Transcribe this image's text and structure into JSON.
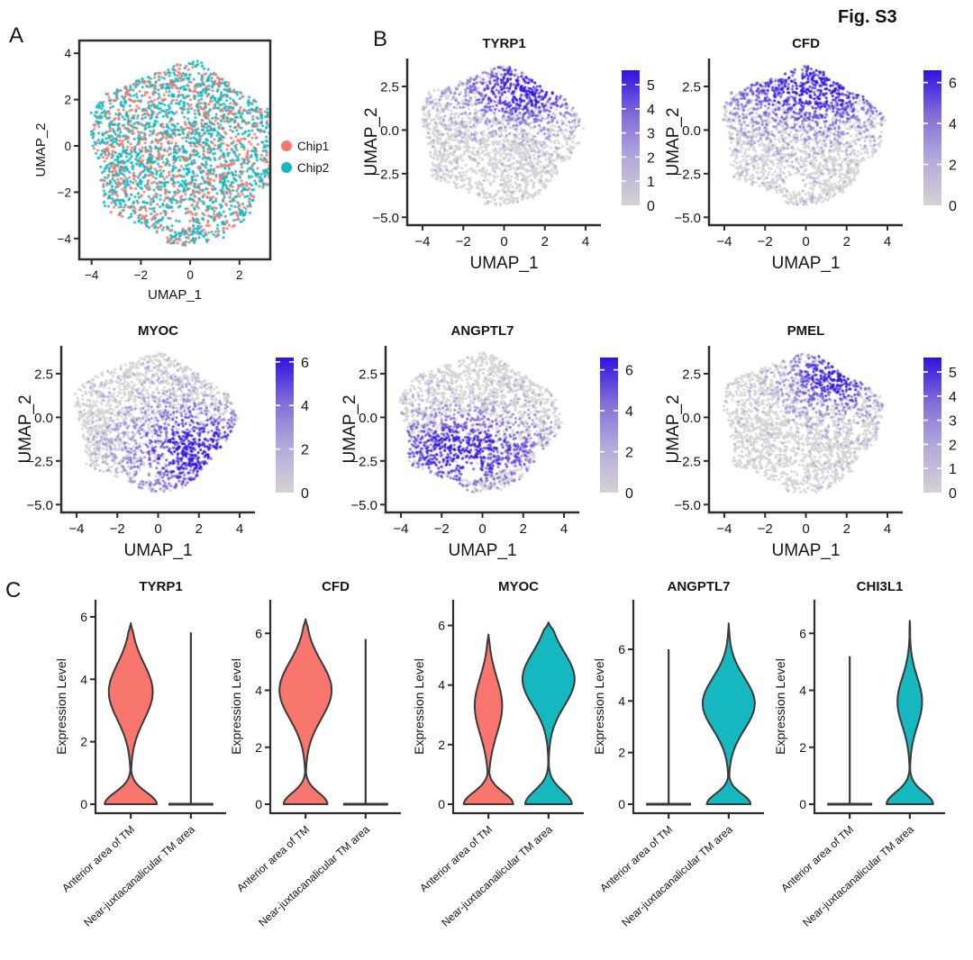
{
  "figure_label": "Fig. S3",
  "panel_labels": {
    "a": "A",
    "b": "B",
    "c": "C"
  },
  "colors": {
    "chip1": "#F8766D",
    "chip2": "#14B8BE",
    "expr_gradient": [
      "#D5D2D2",
      "#B3A8DC",
      "#8671D8",
      "#3012E1"
    ],
    "axis": "#2D2D2D",
    "violin_outline": "#3A3A3A"
  },
  "chart_data": [
    {
      "id": "umap-by-chip",
      "panel": "A",
      "kind": "chip-scatter",
      "type": "scatter",
      "xlabel": "UMAP_1",
      "ylabel": "UMAP_2",
      "xticks": [
        "−4",
        "−2",
        "0",
        "2"
      ],
      "yticks": [
        "4",
        "2",
        "0",
        "−2",
        "−4"
      ],
      "xlim": [
        -4.5,
        3.25
      ],
      "ylim": [
        -4.9,
        4.55
      ],
      "legend": [
        {
          "label": "Chip1",
          "color": "#F8766D"
        },
        {
          "label": "Chip2",
          "color": "#14B8BE"
        }
      ],
      "n_points": 2600,
      "chip1_fraction": 0.38,
      "framed": true,
      "seed": 7
    },
    {
      "id": "feature-TYRP1",
      "panel": "B",
      "kind": "feature-scatter",
      "type": "scatter",
      "title": "TYRP1",
      "xlabel": "UMAP_1",
      "ylabel": "UMAP_2",
      "xticks": [
        "−4",
        "−2",
        "0",
        "2",
        "4"
      ],
      "yticks": [
        "2.5",
        "0.0",
        "−2.5",
        "−5.0"
      ],
      "xlim": [
        -4.75,
        4.75
      ],
      "ylim": [
        -5.45,
        4.1
      ],
      "colorbar_ticks": [
        "5",
        "4",
        "3",
        "2",
        "1",
        "0"
      ],
      "colorbar_max": 5.6,
      "hotspot": {
        "cx": 1.1,
        "cy": 2.4,
        "sx": 2.3,
        "sy": 1.5,
        "density": 0.95,
        "background": 0.1
      },
      "expression_pattern": "high in upper region",
      "n_points": 2100,
      "seed": 11
    },
    {
      "id": "feature-CFD",
      "panel": "B",
      "kind": "feature-scatter",
      "type": "scatter",
      "title": "CFD",
      "xlabel": "UMAP_1",
      "ylabel": "UMAP_2",
      "xticks": [
        "−4",
        "−2",
        "0",
        "2",
        "4"
      ],
      "yticks": [
        "2.5",
        "0.0",
        "−2.5",
        "−5.0"
      ],
      "xlim": [
        -4.75,
        4.75
      ],
      "ylim": [
        -5.45,
        4.1
      ],
      "colorbar_ticks": [
        "6",
        "4",
        "2",
        "0"
      ],
      "colorbar_max": 6.6,
      "hotspot": {
        "cx": 0.4,
        "cy": 2.5,
        "sx": 3.0,
        "sy": 1.8,
        "density": 0.9,
        "background": 0.12
      },
      "expression_pattern": "high across upper half",
      "n_points": 2100,
      "seed": 12
    },
    {
      "id": "feature-MYOC",
      "panel": "B",
      "kind": "feature-scatter",
      "type": "scatter",
      "title": "MYOC",
      "xlabel": "UMAP_1",
      "ylabel": "UMAP_2",
      "xticks": [
        "−4",
        "−2",
        "0",
        "2",
        "4"
      ],
      "yticks": [
        "2.5",
        "0.0",
        "−2.5",
        "−5.0"
      ],
      "xlim": [
        -4.75,
        4.75
      ],
      "ylim": [
        -5.45,
        4.1
      ],
      "colorbar_ticks": [
        "6",
        "4",
        "2",
        "0"
      ],
      "colorbar_max": 6.2,
      "hotspot": {
        "cx": 1.7,
        "cy": -1.9,
        "sx": 2.2,
        "sy": 1.9,
        "density": 0.9,
        "background": 0.12
      },
      "expression_pattern": "high in lower-right region",
      "n_points": 2100,
      "seed": 13
    },
    {
      "id": "feature-ANGPTL7",
      "panel": "B",
      "kind": "feature-scatter",
      "type": "scatter",
      "title": "ANGPTL7",
      "xlabel": "UMAP_1",
      "ylabel": "UMAP_2",
      "xticks": [
        "−4",
        "−2",
        "0",
        "2",
        "4"
      ],
      "yticks": [
        "2.5",
        "0.0",
        "−2.5",
        "−5.0"
      ],
      "xlim": [
        -4.75,
        4.75
      ],
      "ylim": [
        -5.45,
        4.1
      ],
      "colorbar_ticks": [
        "6",
        "4",
        "2",
        "0"
      ],
      "colorbar_max": 6.6,
      "hotspot": {
        "cx": -0.9,
        "cy": -1.9,
        "sx": 2.9,
        "sy": 1.5,
        "density": 0.92,
        "background": 0.07
      },
      "expression_pattern": "high across lower region",
      "n_points": 2100,
      "seed": 14
    },
    {
      "id": "feature-PMEL",
      "panel": "B",
      "kind": "feature-scatter",
      "type": "scatter",
      "title": "PMEL",
      "xlabel": "UMAP_1",
      "ylabel": "UMAP_2",
      "xticks": [
        "−4",
        "−2",
        "0",
        "2",
        "4"
      ],
      "yticks": [
        "2.5",
        "0.0",
        "−2.5",
        "−5.0"
      ],
      "xlim": [
        -4.75,
        4.75
      ],
      "ylim": [
        -5.45,
        4.1
      ],
      "colorbar_ticks": [
        "5",
        "4",
        "3",
        "2",
        "1",
        "0"
      ],
      "colorbar_max": 5.6,
      "hotspot": {
        "cx": 1.6,
        "cy": 2.4,
        "sx": 1.8,
        "sy": 1.5,
        "density": 0.95,
        "background": 0.07
      },
      "expression_pattern": "high in upper-right region",
      "n_points": 2100,
      "seed": 15
    },
    {
      "id": "violin-TYRP1",
      "panel": "C",
      "kind": "violin",
      "type": "area",
      "title": "TYRP1",
      "ylabel": "Expression Level",
      "yticks": [
        "0",
        "2",
        "4",
        "6"
      ],
      "ymax_axis": 6.2,
      "categories": [
        "Anterior area of TM",
        "Near-juxtacanalicular TM area"
      ],
      "series": [
        {
          "category": "Anterior area of TM",
          "color": "#F8766D",
          "style": "violin",
          "max": 5.8,
          "bulge_center": 3.6,
          "bulge_sd": 0.9,
          "bulge_width": 0.8,
          "base_width": 0.95,
          "base_sd": 0.38
        },
        {
          "category": "Near-juxtacanalicular TM area",
          "color": "#14B8BE",
          "style": "line",
          "max": 5.5
        }
      ]
    },
    {
      "id": "violin-CFD",
      "panel": "C",
      "kind": "violin",
      "type": "area",
      "title": "CFD",
      "ylabel": "Expression Level",
      "yticks": [
        "0",
        "2",
        "4",
        "6"
      ],
      "ymax_axis": 6.8,
      "categories": [
        "Anterior area of TM",
        "Near-juxtacanalicular TM area"
      ],
      "series": [
        {
          "category": "Anterior area of TM",
          "color": "#F8766D",
          "style": "violin",
          "max": 6.5,
          "bulge_center": 4.0,
          "bulge_sd": 1.0,
          "bulge_width": 0.95,
          "base_width": 0.8,
          "base_sd": 0.4
        },
        {
          "category": "Near-juxtacanalicular TM area",
          "color": "#14B8BE",
          "style": "line",
          "max": 5.8
        }
      ]
    },
    {
      "id": "violin-MYOC",
      "panel": "C",
      "kind": "violin",
      "type": "area",
      "title": "MYOC",
      "ylabel": "Expression Level",
      "yticks": [
        "0",
        "2",
        "4",
        "6"
      ],
      "ymax_axis": 6.5,
      "categories": [
        "Anterior area of TM",
        "Near-juxtacanalicular TM area"
      ],
      "series": [
        {
          "category": "Anterior area of TM",
          "color": "#F8766D",
          "style": "violin",
          "max": 5.7,
          "bulge_center": 3.3,
          "bulge_sd": 0.95,
          "bulge_width": 0.5,
          "base_width": 0.9,
          "base_sd": 0.4
        },
        {
          "category": "Near-juxtacanalicular TM area",
          "color": "#14B8BE",
          "style": "violin",
          "max": 6.1,
          "bulge_center": 4.2,
          "bulge_sd": 0.9,
          "bulge_width": 0.95,
          "base_width": 0.85,
          "base_sd": 0.45
        }
      ]
    },
    {
      "id": "violin-ANGPTL7",
      "panel": "C",
      "kind": "violin",
      "type": "area",
      "title": "ANGPTL7",
      "ylabel": "Expression Level",
      "yticks": [
        "0",
        "2",
        "4",
        "6"
      ],
      "ymax_axis": 7.5,
      "categories": [
        "Anterior area of TM",
        "Near-juxtacanalicular TM area"
      ],
      "series": [
        {
          "category": "Anterior area of TM",
          "color": "#F8766D",
          "style": "line",
          "max": 6.0
        },
        {
          "category": "Near-juxtacanalicular TM area",
          "color": "#14B8BE",
          "style": "violin",
          "max": 7.0,
          "bulge_center": 3.9,
          "bulge_sd": 1.0,
          "bulge_width": 0.95,
          "base_width": 0.8,
          "base_sd": 0.4
        }
      ]
    },
    {
      "id": "violin-CHI3L1",
      "panel": "C",
      "kind": "violin",
      "type": "area",
      "title": "CHI3L1",
      "ylabel": "Expression Level",
      "yticks": [
        "0",
        "2",
        "4",
        "6"
      ],
      "ymax_axis": 6.8,
      "categories": [
        "Anterior area of TM",
        "Near-juxtacanalicular TM area"
      ],
      "series": [
        {
          "category": "Anterior area of TM",
          "color": "#F8766D",
          "style": "line",
          "max": 5.2
        },
        {
          "category": "Near-juxtacanalicular TM area",
          "color": "#14B8BE",
          "style": "violin",
          "max": 6.45,
          "bulge_center": 3.6,
          "bulge_sd": 0.85,
          "bulge_width": 0.45,
          "base_width": 0.85,
          "base_sd": 0.42
        }
      ]
    }
  ]
}
